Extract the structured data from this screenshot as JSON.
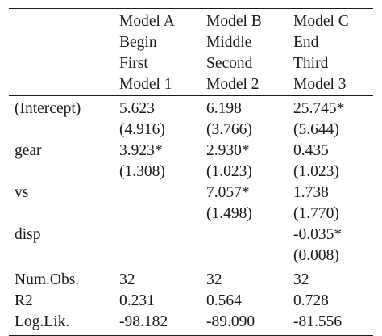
{
  "table": {
    "header_rows": [
      [
        "",
        "Model A",
        "Model B",
        "Model C"
      ],
      [
        "",
        "Begin",
        "Middle",
        "End"
      ],
      [
        "",
        "First",
        "Second",
        "Third"
      ],
      [
        "",
        "Model 1",
        "Model 2",
        "Model 3"
      ]
    ],
    "coef_rows": [
      [
        "(Intercept)",
        "5.623",
        "6.198",
        "25.745*"
      ],
      [
        "",
        "(4.916)",
        "(3.766)",
        "(5.644)"
      ],
      [
        "gear",
        "3.923*",
        "2.930*",
        "0.435"
      ],
      [
        "",
        "(1.308)",
        "(1.023)",
        "(1.023)"
      ],
      [
        "vs",
        "",
        "7.057*",
        "1.738"
      ],
      [
        "",
        "",
        "(1.498)",
        "(1.770)"
      ],
      [
        "disp",
        "",
        "",
        "-0.035*"
      ],
      [
        "",
        "",
        "",
        "(0.008)"
      ]
    ],
    "stat_rows": [
      [
        "Num.Obs.",
        "32",
        "32",
        "32"
      ],
      [
        "R2",
        "0.231",
        "0.564",
        "0.728"
      ],
      [
        "Log.Lik.",
        "-98.182",
        "-89.090",
        "-81.556"
      ]
    ]
  }
}
